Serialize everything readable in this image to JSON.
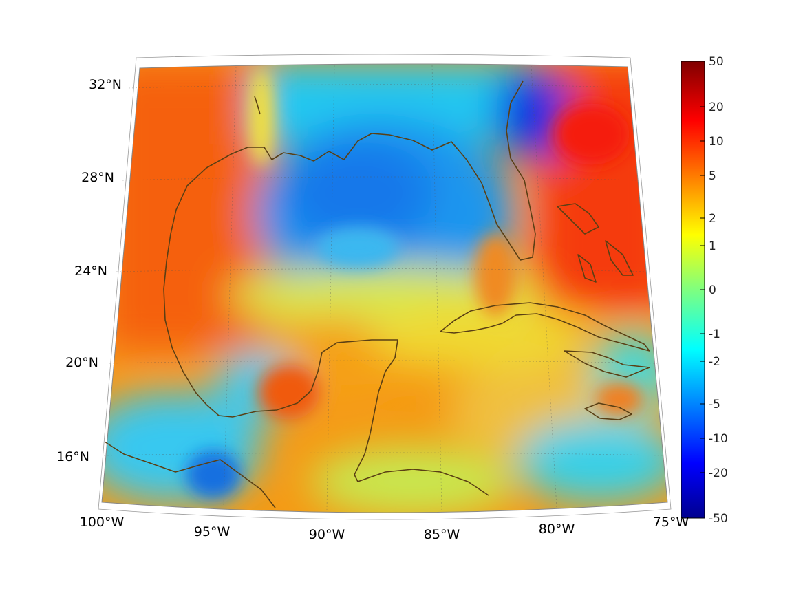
{
  "map": {
    "projection": "lambert-conformal",
    "extent": {
      "lon_min": -100,
      "lon_max": -75,
      "lat_min": 14,
      "lat_max": 33
    },
    "lon_labels": [
      "100°W",
      "95°W",
      "90°W",
      "85°W",
      "80°W",
      "75°W"
    ],
    "lat_labels": [
      "32°N",
      "28°N",
      "24°N",
      "20°N",
      "16°N"
    ],
    "coastline_color": "#5a3f14",
    "gridlines": true
  },
  "colorbar": {
    "colormap": "jet",
    "ticks": [
      "50",
      "20",
      "10",
      "5",
      "2",
      "1",
      "0",
      "-1",
      "-2",
      "-5",
      "-10",
      "-20",
      "-50"
    ]
  }
}
